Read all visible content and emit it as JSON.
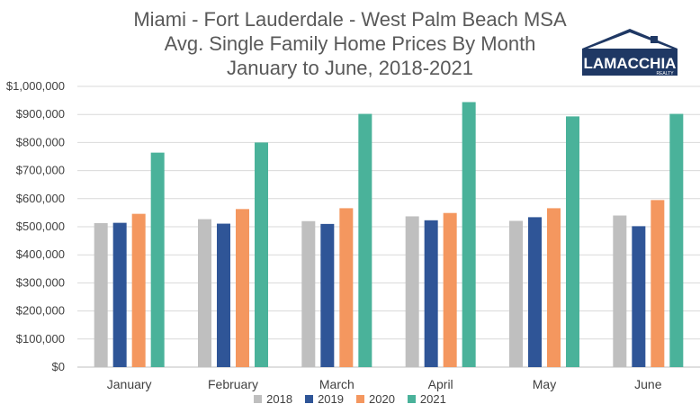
{
  "chart_data": {
    "type": "bar",
    "title": [
      "Miami - Fort Lauderdale - West Palm Beach MSA",
      "Avg. Single Family Home Prices By Month",
      "January to June, 2018-2021"
    ],
    "categories": [
      "January",
      "February",
      "March",
      "April",
      "May",
      "June"
    ],
    "series": [
      {
        "name": "2018",
        "color": "#BFBFBF",
        "values": [
          513000,
          527000,
          520000,
          537000,
          521000,
          540000
        ]
      },
      {
        "name": "2019",
        "color": "#2F5597",
        "values": [
          514000,
          511000,
          510000,
          523000,
          534000,
          502000
        ]
      },
      {
        "name": "2020",
        "color": "#F4975F",
        "values": [
          546000,
          563000,
          566000,
          549000,
          566000,
          595000
        ]
      },
      {
        "name": "2021",
        "color": "#4AB29A",
        "values": [
          764000,
          800000,
          902000,
          944000,
          893000,
          902000
        ]
      }
    ],
    "ylim": [
      0,
      1000000
    ],
    "yticks": [
      "$0",
      "$100,000",
      "$200,000",
      "$300,000",
      "$400,000",
      "$500,000",
      "$600,000",
      "$700,000",
      "$800,000",
      "$900,000",
      "$1,000,000"
    ],
    "grid": true,
    "legend_position": "bottom"
  },
  "logo": {
    "name": "LAMACCHIA",
    "sub": "REALTY"
  }
}
